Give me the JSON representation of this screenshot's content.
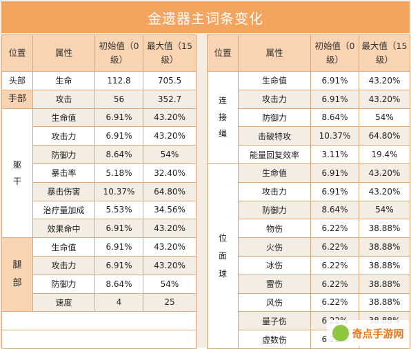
{
  "title": "金遗器主词条变化",
  "headers": [
    "位置",
    "属性",
    "初始值（0级）",
    "最大值（15级）"
  ],
  "left": {
    "head": {
      "pos": "头部",
      "attr": "生命",
      "init": "112.8",
      "max": "705.5"
    },
    "hand": {
      "pos": "手部",
      "attr": "攻击",
      "init": "56",
      "max": "352.7"
    },
    "torso_pos": "躯干",
    "torso": [
      {
        "attr": "生命值",
        "init": "6.91%",
        "max": "43.20%"
      },
      {
        "attr": "攻击力",
        "init": "6.91%",
        "max": "43.20%"
      },
      {
        "attr": "防御力",
        "init": "8.64%",
        "max": "54%"
      },
      {
        "attr": "暴击率",
        "init": "5.18%",
        "max": "32.40%"
      },
      {
        "attr": "暴击伤害",
        "init": "10.37%",
        "max": "64.80%"
      },
      {
        "attr": "治疗量加成",
        "init": "5.53%",
        "max": "34.56%"
      },
      {
        "attr": "效果命中",
        "init": "6.91%",
        "max": "43.20%"
      }
    ],
    "legs_pos": "腿部",
    "legs": [
      {
        "attr": "生命值",
        "init": "6.91%",
        "max": "43.20%"
      },
      {
        "attr": "攻击力",
        "init": "6.91%",
        "max": "43.20%"
      },
      {
        "attr": "防御力",
        "init": "8.64%",
        "max": "54%"
      },
      {
        "attr": "速度",
        "init": "4",
        "max": "25"
      }
    ]
  },
  "right": {
    "rope_pos": "连接绳",
    "rope": [
      {
        "attr": "生命值",
        "init": "6.91%",
        "max": "43.20%"
      },
      {
        "attr": "攻击力",
        "init": "6.91%",
        "max": "43.20%"
      },
      {
        "attr": "防御力",
        "init": "8.64%",
        "max": "54%"
      },
      {
        "attr": "击破特攻",
        "init": "10.37%",
        "max": "64.80%"
      },
      {
        "attr": "能量回复效率",
        "init": "3.11%",
        "max": "19.4%"
      }
    ],
    "sphere_pos": "位面球",
    "sphere": [
      {
        "attr": "生命值",
        "init": "6.91%",
        "max": "43.20%"
      },
      {
        "attr": "攻击力",
        "init": "6.91%",
        "max": "43.20%"
      },
      {
        "attr": "防御力",
        "init": "8.64%",
        "max": "54%"
      },
      {
        "attr": "物伤",
        "init": "6.22%",
        "max": "38.88%"
      },
      {
        "attr": "火伤",
        "init": "6.22%",
        "max": "38.88%"
      },
      {
        "attr": "冰伤",
        "init": "6.22%",
        "max": "38.88%"
      },
      {
        "attr": "雷伤",
        "init": "6.22%",
        "max": "38.88%"
      },
      {
        "attr": "风伤",
        "init": "6.22%",
        "max": "38.88%"
      },
      {
        "attr": "量子伤",
        "init": "6.22%",
        "max": "38.88%"
      },
      {
        "attr": "虚数伤",
        "init": "6.22%",
        "max": ""
      }
    ]
  },
  "watermark": "奇点手游网"
}
